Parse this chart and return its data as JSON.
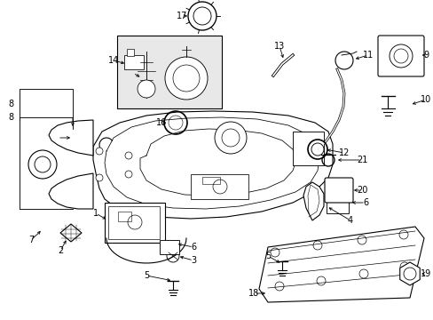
{
  "background_color": "#ffffff",
  "fig_width": 4.89,
  "fig_height": 3.6,
  "dpi": 100,
  "tank_color": "#ffffff",
  "line_color": "#000000",
  "inset_bg": "#e8e8e8"
}
